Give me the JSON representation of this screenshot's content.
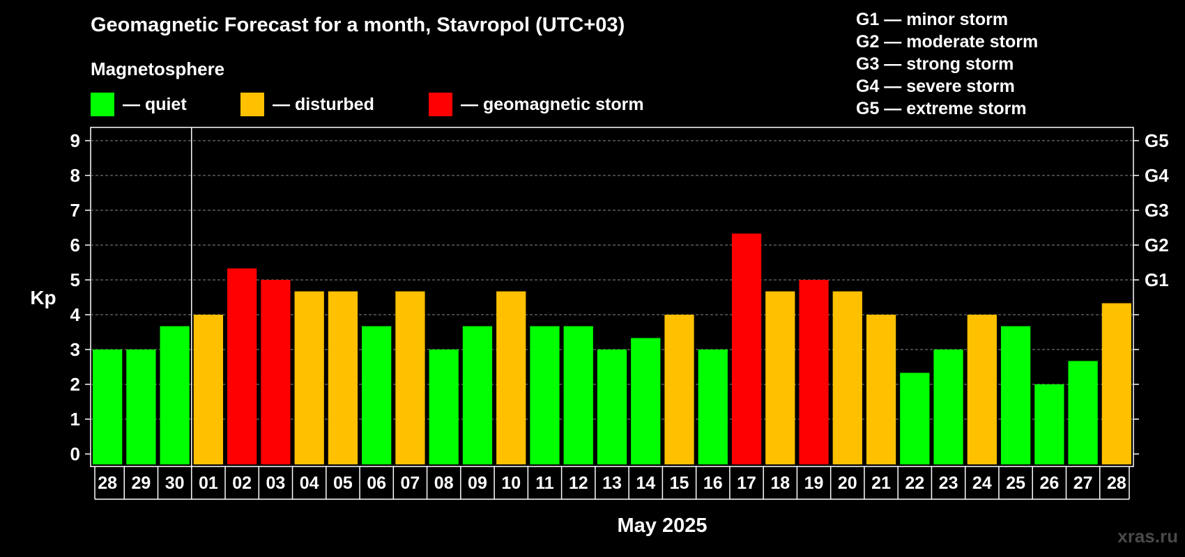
{
  "title": "Geomagnetic Forecast for a month, Stavropol (UTC+03)",
  "magnetosphere_label": "Magnetosphere",
  "legend": [
    {
      "label": "— quiet",
      "color": "#00ff00"
    },
    {
      "label": "— disturbed",
      "color": "#ffc000"
    },
    {
      "label": "— geomagnetic storm",
      "color": "#ff0000"
    }
  ],
  "g_scale": [
    "G1 — minor storm",
    "G2 — moderate storm",
    "G3 — strong storm",
    "G4 — severe storm",
    "G5 — extreme storm"
  ],
  "watermark": "xras.ru",
  "colors": {
    "quiet": "#00ff00",
    "disturbed": "#ffc000",
    "storm": "#ff0000"
  },
  "chart_data": {
    "type": "bar",
    "ylabel": "Kp",
    "xlabel": "May 2025",
    "ylim": [
      0,
      9
    ],
    "yticks": [
      0,
      1,
      2,
      3,
      4,
      5,
      6,
      7,
      8,
      9
    ],
    "right_axis_labels": [
      {
        "value": 5,
        "label": "G1"
      },
      {
        "value": 6,
        "label": "G2"
      },
      {
        "value": 7,
        "label": "G3"
      },
      {
        "value": 8,
        "label": "G4"
      },
      {
        "value": 9,
        "label": "G5"
      }
    ],
    "grid": "dashed horizontal",
    "month_divider_after_index": 2,
    "categories": [
      "28",
      "29",
      "30",
      "01",
      "02",
      "03",
      "04",
      "05",
      "06",
      "07",
      "08",
      "09",
      "10",
      "11",
      "12",
      "13",
      "14",
      "15",
      "16",
      "17",
      "18",
      "19",
      "20",
      "21",
      "22",
      "23",
      "24",
      "25",
      "26",
      "27",
      "28"
    ],
    "values": [
      3,
      3,
      3.67,
      4,
      5.33,
      5,
      4.67,
      4.67,
      3.67,
      4.67,
      3,
      3.67,
      4.67,
      3.67,
      3.67,
      3,
      3.33,
      4,
      3,
      6.33,
      4.67,
      5,
      4.67,
      4,
      2.33,
      3,
      4,
      3.67,
      2,
      2.67,
      4.33
    ],
    "status": [
      "quiet",
      "quiet",
      "quiet",
      "disturbed",
      "storm",
      "storm",
      "disturbed",
      "disturbed",
      "quiet",
      "disturbed",
      "quiet",
      "quiet",
      "disturbed",
      "quiet",
      "quiet",
      "quiet",
      "quiet",
      "disturbed",
      "quiet",
      "storm",
      "disturbed",
      "storm",
      "disturbed",
      "disturbed",
      "quiet",
      "quiet",
      "disturbed",
      "quiet",
      "quiet",
      "quiet",
      "disturbed"
    ]
  }
}
